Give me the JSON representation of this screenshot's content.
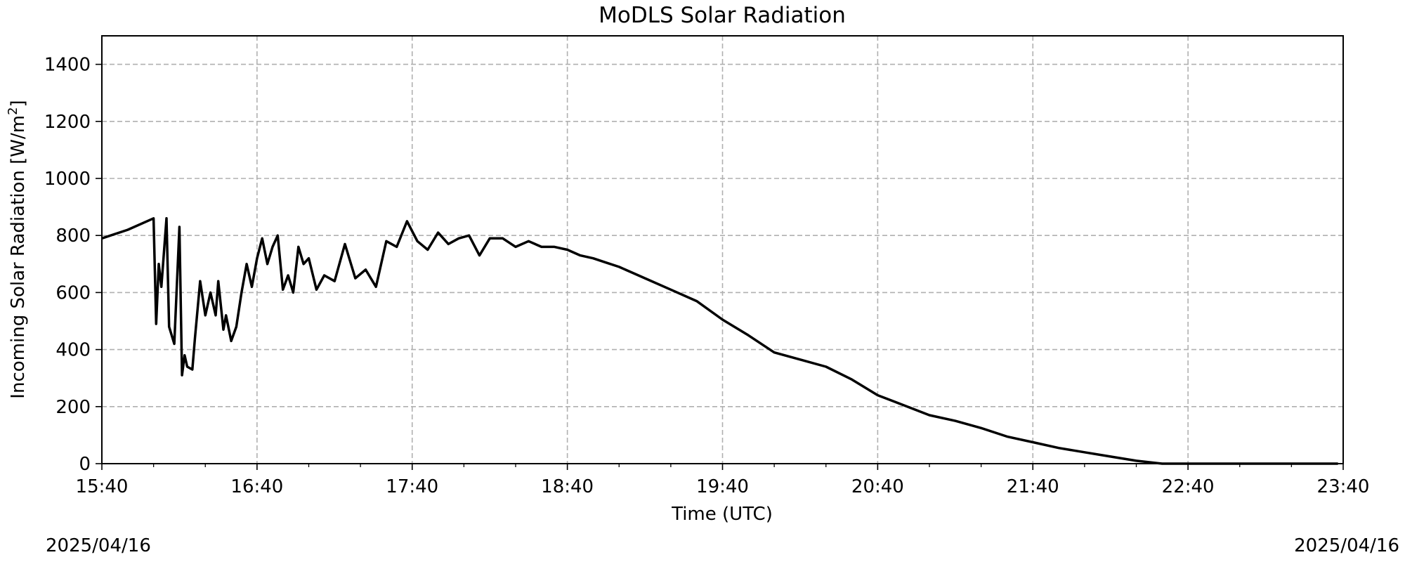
{
  "chart_data": {
    "type": "line",
    "title": "MoDLS Solar Radiation",
    "xlabel": "Time (UTC)",
    "ylabel_main": "Incoming Solar Radiation [W/m",
    "ylabel_sup": "2",
    "ylabel_close": "]",
    "xlim": [
      "15:40",
      "23:40"
    ],
    "ylim": [
      0,
      1500
    ],
    "x_ticks": [
      "15:40",
      "16:40",
      "17:40",
      "18:40",
      "19:40",
      "20:40",
      "21:40",
      "22:40",
      "23:40"
    ],
    "y_ticks": [
      0,
      200,
      400,
      600,
      800,
      1000,
      1200,
      1400
    ],
    "grid": true,
    "line_color": "#000000",
    "x": [
      "15:40",
      "15:50",
      "16:00",
      "16:01",
      "16:02",
      "16:03",
      "16:05",
      "16:06",
      "16:08",
      "16:10",
      "16:11",
      "16:12",
      "16:13",
      "16:15",
      "16:16",
      "16:18",
      "16:20",
      "16:22",
      "16:24",
      "16:25",
      "16:27",
      "16:28",
      "16:30",
      "16:32",
      "16:34",
      "16:36",
      "16:38",
      "16:40",
      "16:42",
      "16:44",
      "16:46",
      "16:48",
      "16:50",
      "16:52",
      "16:54",
      "16:56",
      "16:58",
      "17:00",
      "17:03",
      "17:06",
      "17:10",
      "17:14",
      "17:18",
      "17:22",
      "17:26",
      "17:30",
      "17:34",
      "17:38",
      "17:42",
      "17:46",
      "17:50",
      "17:54",
      "17:58",
      "18:02",
      "18:06",
      "18:10",
      "18:15",
      "18:20",
      "18:25",
      "18:30",
      "18:35",
      "18:40",
      "18:45",
      "18:50",
      "18:55",
      "19:00",
      "19:05",
      "19:10",
      "19:20",
      "19:30",
      "19:40",
      "19:50",
      "20:00",
      "20:10",
      "20:20",
      "20:30",
      "20:40",
      "20:50",
      "21:00",
      "21:10",
      "21:20",
      "21:30",
      "21:40",
      "21:50",
      "22:00",
      "22:10",
      "22:20",
      "22:30",
      "22:40",
      "22:50",
      "23:00",
      "23:10",
      "23:20",
      "23:30",
      "23:35",
      "23:38"
    ],
    "y": [
      790,
      820,
      860,
      490,
      700,
      620,
      860,
      480,
      420,
      830,
      310,
      380,
      340,
      330,
      440,
      640,
      520,
      600,
      520,
      640,
      470,
      520,
      430,
      480,
      600,
      700,
      620,
      720,
      790,
      700,
      760,
      800,
      610,
      660,
      600,
      760,
      700,
      720,
      610,
      660,
      640,
      770,
      650,
      680,
      620,
      780,
      760,
      850,
      780,
      750,
      810,
      770,
      790,
      800,
      730,
      790,
      790,
      760,
      780,
      760,
      760,
      750,
      730,
      720,
      705,
      690,
      670,
      650,
      610,
      570,
      505,
      450,
      390,
      365,
      340,
      295,
      240,
      205,
      170,
      150,
      125,
      95,
      75,
      55,
      40,
      25,
      10,
      0,
      0,
      0,
      0,
      0,
      0,
      0,
      0,
      0
    ]
  },
  "date_left": "2025/04/16",
  "date_right": "2025/04/16"
}
